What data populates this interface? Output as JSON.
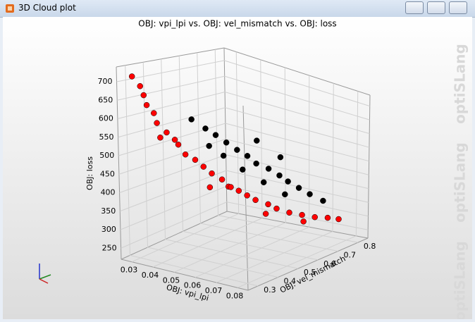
{
  "window": {
    "title": "3D Cloud plot"
  },
  "watermark": "optiSLang",
  "chart_data": {
    "type": "scatter3d",
    "title": "OBJ: vpi_lpi vs. OBJ: vel_mismatch vs. OBJ: loss",
    "x_label": "OBJ: vpi_lpi",
    "y_label": "OBJ: vel_mismatch",
    "z_label": "OBJ: loss",
    "xlim": [
      0.025,
      0.085
    ],
    "ylim": [
      0.25,
      0.85
    ],
    "zlim": [
      220,
      740
    ],
    "xticks": [
      0.03,
      0.04,
      0.05,
      0.06,
      0.07,
      0.08
    ],
    "yticks": [
      0.3,
      0.4,
      0.5,
      0.6,
      0.7,
      0.8
    ],
    "zticks": [
      250,
      300,
      350,
      400,
      450,
      500,
      550,
      600,
      650,
      700
    ],
    "grid": true,
    "series": [
      {
        "color": "#ff0000",
        "x": [
          0.028,
          0.03,
          0.029,
          0.032,
          0.031,
          0.034,
          0.035,
          0.037,
          0.036,
          0.04,
          0.041,
          0.043,
          0.045,
          0.047,
          0.049,
          0.051,
          0.053,
          0.055,
          0.058,
          0.06,
          0.063,
          0.066,
          0.069,
          0.072,
          0.075,
          0.07,
          0.062,
          0.05,
          0.038,
          0.045
        ],
        "y": [
          0.3,
          0.32,
          0.35,
          0.33,
          0.38,
          0.36,
          0.4,
          0.42,
          0.45,
          0.44,
          0.48,
          0.5,
          0.52,
          0.55,
          0.56,
          0.59,
          0.61,
          0.63,
          0.66,
          0.68,
          0.71,
          0.74,
          0.77,
          0.8,
          0.82,
          0.7,
          0.6,
          0.45,
          0.33,
          0.62
        ],
        "z": [
          715,
          690,
          660,
          640,
          610,
          590,
          560,
          540,
          520,
          500,
          480,
          460,
          440,
          420,
          400,
          385,
          370,
          355,
          340,
          325,
          310,
          300,
          290,
          285,
          280,
          295,
          330,
          420,
          560,
          380
        ]
      },
      {
        "color": "#000000",
        "x": [
          0.04,
          0.042,
          0.045,
          0.048,
          0.05,
          0.053,
          0.055,
          0.058,
          0.06,
          0.063,
          0.066,
          0.07,
          0.044,
          0.047,
          0.052,
          0.057,
          0.062,
          0.038,
          0.05,
          0.056
        ],
        "y": [
          0.55,
          0.58,
          0.6,
          0.62,
          0.65,
          0.66,
          0.7,
          0.72,
          0.74,
          0.76,
          0.78,
          0.8,
          0.52,
          0.56,
          0.6,
          0.65,
          0.7,
          0.5,
          0.7,
          0.75
        ],
        "z": [
          560,
          540,
          520,
          500,
          480,
          460,
          440,
          420,
          400,
          380,
          360,
          340,
          520,
          490,
          450,
          410,
          370,
          590,
          520,
          470
        ]
      }
    ]
  }
}
